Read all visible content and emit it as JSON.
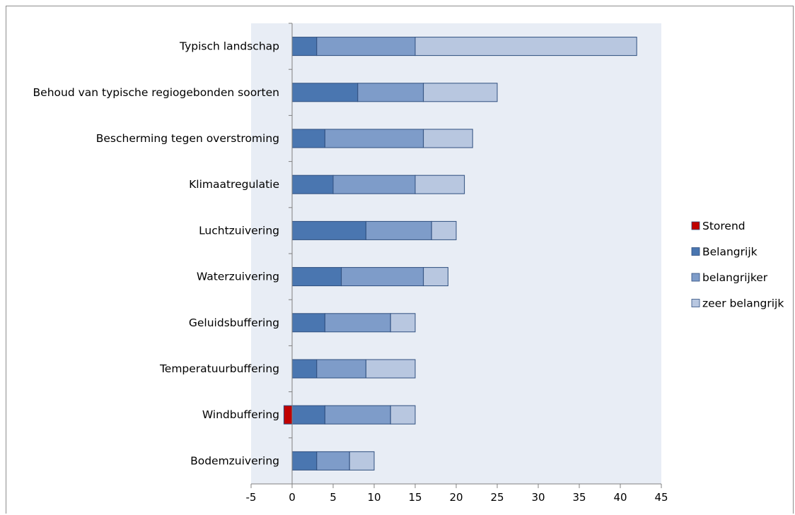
{
  "chart_data": {
    "type": "bar",
    "orientation": "horizontal",
    "stacked": true,
    "categories": [
      "Typisch landschap",
      "Behoud van typische regiogebonden soorten",
      "Bescherming tegen overstroming",
      "Klimaatregulatie",
      "Luchtzuivering",
      "Waterzuivering",
      "Geluidsbuffering",
      "Temperatuurbuffering",
      "Windbuffering",
      "Bodemzuivering"
    ],
    "series": [
      {
        "name": "Storend",
        "color": "#c00000",
        "values": [
          0,
          0,
          0,
          0,
          0,
          0,
          0,
          0,
          -1,
          0
        ]
      },
      {
        "name": "Belangrijk",
        "color": "#4a76b0",
        "values": [
          3,
          8,
          4,
          5,
          9,
          6,
          4,
          3,
          4,
          3
        ]
      },
      {
        "name": "belangrijker",
        "color": "#7e9cc9",
        "values": [
          12,
          8,
          12,
          10,
          8,
          10,
          8,
          6,
          8,
          4
        ]
      },
      {
        "name": "zeer belangrijk",
        "color": "#b8c7e0",
        "values": [
          27,
          9,
          6,
          6,
          3,
          3,
          3,
          6,
          3,
          3
        ]
      }
    ],
    "xlim": [
      -5,
      45
    ],
    "xticks": [
      "-5",
      "0",
      "5",
      "10",
      "15",
      "20",
      "25",
      "30",
      "35",
      "40",
      "45"
    ],
    "grid": false,
    "legend_position": "right",
    "plot_background": "#e8edf5",
    "bar_edge": "#2f4f7f"
  }
}
